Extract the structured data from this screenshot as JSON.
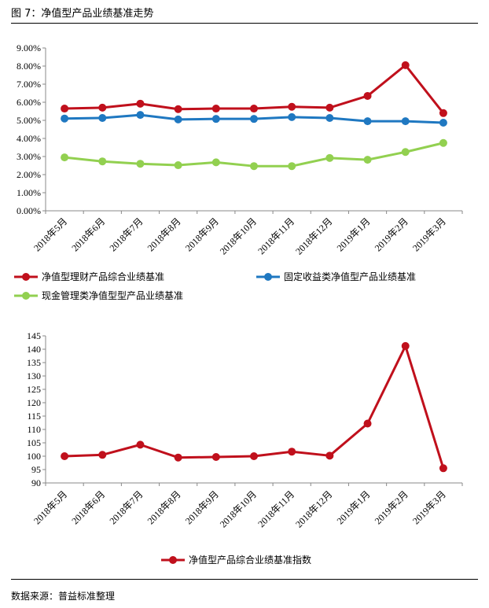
{
  "figure_title": "图 7：净值型产品业绩基准走势",
  "source_text": "数据来源：普益标准整理",
  "chart_data": [
    {
      "type": "line",
      "categories": [
        "2018年5月",
        "2018年6月",
        "2018年7月",
        "2018年8月",
        "2018年9月",
        "2018年10月",
        "2018年11月",
        "2018年12月",
        "2019年1月",
        "2019年2月",
        "2019年3月"
      ],
      "ylim": [
        0,
        9
      ],
      "yticks": [
        "0.00%",
        "1.00%",
        "2.00%",
        "3.00%",
        "4.00%",
        "5.00%",
        "6.00%",
        "7.00%",
        "8.00%",
        "9.00%"
      ],
      "grid": false,
      "series": [
        {
          "name": "净值型理财产品综合业绩基准",
          "color": "#C0101C",
          "values": [
            5.65,
            5.7,
            5.92,
            5.62,
            5.65,
            5.65,
            5.75,
            5.7,
            6.35,
            8.05,
            5.4
          ]
        },
        {
          "name": "固定收益类净值型产品业绩基准",
          "color": "#1F78C1",
          "values": [
            5.1,
            5.13,
            5.3,
            5.05,
            5.08,
            5.08,
            5.18,
            5.13,
            4.95,
            4.95,
            4.87
          ]
        },
        {
          "name": "现金管理类净值型型产品业绩基准",
          "color": "#92D050",
          "values": [
            2.95,
            2.73,
            2.6,
            2.52,
            2.68,
            2.47,
            2.47,
            2.92,
            2.82,
            3.25,
            3.75
          ]
        }
      ]
    },
    {
      "type": "line",
      "categories": [
        "2018年5月",
        "2018年6月",
        "2018年7月",
        "2018年8月",
        "2018年9月",
        "2018年10月",
        "2018年11月",
        "2018年12月",
        "2019年1月",
        "2019年2月",
        "2019年3月"
      ],
      "ylim": [
        90,
        145
      ],
      "yticks": [
        "90",
        "95",
        "100",
        "105",
        "110",
        "115",
        "120",
        "125",
        "130",
        "135",
        "140",
        "145"
      ],
      "grid": false,
      "series": [
        {
          "name": "净值型产品综合业绩基准指数",
          "color": "#C0101C",
          "values": [
            100.0,
            100.5,
            104.3,
            99.5,
            99.7,
            100.0,
            101.7,
            100.2,
            112.2,
            141.2,
            95.5
          ]
        }
      ]
    }
  ]
}
